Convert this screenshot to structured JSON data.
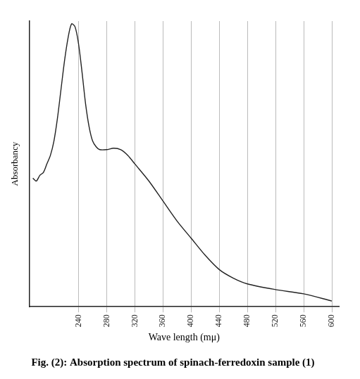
{
  "chart_data": {
    "type": "line",
    "title": "Fig. (2): Absorption spectrum of spinach-ferredoxin sample (1)",
    "x_label": "Wave length (mμ)",
    "y_label": "Absorbancy",
    "x": [
      175,
      180,
      185,
      190,
      195,
      200,
      205,
      210,
      215,
      220,
      225,
      230,
      235,
      240,
      245,
      250,
      255,
      260,
      265,
      270,
      280,
      290,
      300,
      310,
      320,
      340,
      360,
      380,
      400,
      420,
      440,
      460,
      480,
      520,
      560,
      600
    ],
    "values": [
      0.45,
      0.44,
      0.46,
      0.47,
      0.5,
      0.53,
      0.58,
      0.66,
      0.76,
      0.86,
      0.94,
      0.99,
      0.98,
      0.92,
      0.82,
      0.71,
      0.63,
      0.58,
      0.56,
      0.55,
      0.55,
      0.555,
      0.55,
      0.53,
      0.5,
      0.44,
      0.37,
      0.3,
      0.24,
      0.18,
      0.13,
      0.1,
      0.08,
      0.06,
      0.045,
      0.02
    ],
    "color": "#222222",
    "xlim": [
      170,
      610
    ],
    "xticks": [
      240,
      280,
      320,
      360,
      400,
      440,
      480,
      520,
      560,
      600
    ],
    "ylim": [
      0,
      1
    ],
    "grid": true,
    "tick_labels": "x"
  }
}
